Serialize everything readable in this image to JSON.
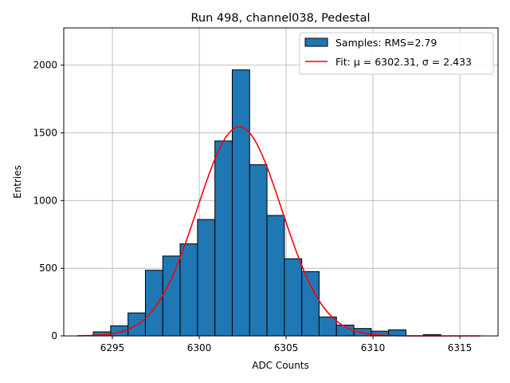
{
  "chart_data": {
    "type": "bar",
    "title": "Run 498, channel038, Pedestal",
    "xlabel": "ADC Counts",
    "ylabel": "Entries",
    "xlim": [
      6292.2,
      6317.2
    ],
    "ylim": [
      0,
      2275
    ],
    "xticks": [
      6295,
      6300,
      6305,
      6310,
      6315
    ],
    "yticks": [
      0,
      500,
      1000,
      1500,
      2000
    ],
    "grid": true,
    "legend_position": "top-right",
    "bin_edges": [
      6293.9,
      6294.9,
      6295.9,
      6296.9,
      6297.9,
      6298.9,
      6299.9,
      6300.9,
      6301.9,
      6302.9,
      6303.9,
      6304.9,
      6305.9,
      6306.9,
      6307.9,
      6308.9,
      6309.9,
      6310.9,
      6311.9,
      6312.9,
      6313.9
    ],
    "values": [
      30,
      75,
      170,
      485,
      590,
      680,
      860,
      1440,
      1965,
      1265,
      890,
      570,
      475,
      140,
      80,
      55,
      35,
      45,
      0,
      10
    ],
    "series": [
      {
        "name": "Samples: RMS=2.79",
        "kind": "histogram",
        "color": "#1f77b4"
      },
      {
        "name": "Fit: μ = 6302.31, σ = 2.433",
        "kind": "line",
        "color": "#ff0000",
        "mu": 6302.31,
        "sigma": 2.433,
        "amplitude": 1545,
        "x_range": [
          6293.0,
          6316.2
        ]
      }
    ]
  }
}
